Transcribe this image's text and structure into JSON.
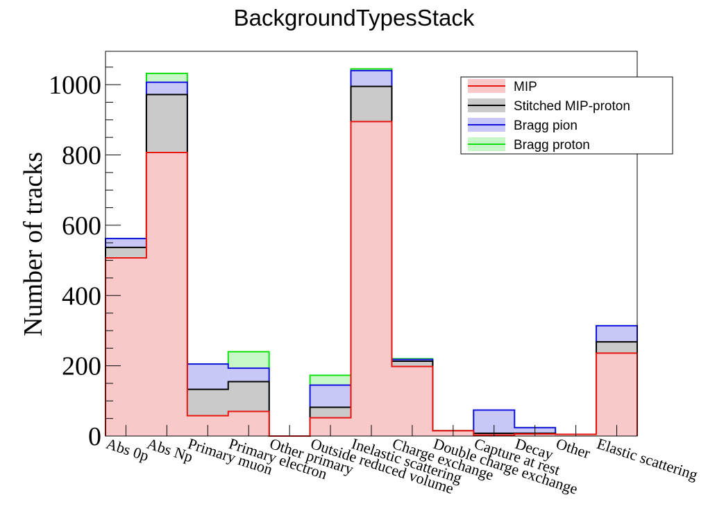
{
  "chart_data": {
    "type": "bar",
    "stacked": true,
    "title": "BackgroundTypesStack",
    "xlabel": "",
    "ylabel": "Number of tracks",
    "ylim": [
      0,
      1095
    ],
    "yticks": [
      0,
      200,
      400,
      600,
      800,
      1000
    ],
    "grid": false,
    "legend_position": "top-right",
    "categories": [
      "Abs 0p",
      "Abs Np",
      "Primary muon",
      "Primary electron",
      "Other primary",
      "Outside reduced volume",
      "Inelastic scattering",
      "Charge exchange",
      "Double charge exchange",
      "Capture at rest",
      "Decay",
      "Other",
      "Elastic scattering"
    ],
    "series": [
      {
        "name": "MIP",
        "fill": "#f9c9c9",
        "line": "#e8140e",
        "values": [
          507,
          807,
          58,
          70,
          0,
          52,
          895,
          198,
          15,
          3,
          6,
          5,
          236
        ]
      },
      {
        "name": "Stitched MIP-proton",
        "fill": "#cacaca",
        "line": "#000000",
        "values": [
          30,
          165,
          75,
          85,
          0,
          30,
          100,
          15,
          0,
          5,
          2,
          0,
          32
        ]
      },
      {
        "name": "Bragg pion",
        "fill": "#c8c8f8",
        "line": "#1010e0",
        "values": [
          25,
          35,
          72,
          38,
          0,
          63,
          45,
          5,
          0,
          66,
          16,
          0,
          46
        ]
      },
      {
        "name": "Bragg proton",
        "fill": "#c8f8c8",
        "line": "#10e010",
        "values": [
          0,
          25,
          0,
          47,
          0,
          28,
          5,
          2,
          0,
          0,
          0,
          0,
          0
        ]
      }
    ]
  }
}
